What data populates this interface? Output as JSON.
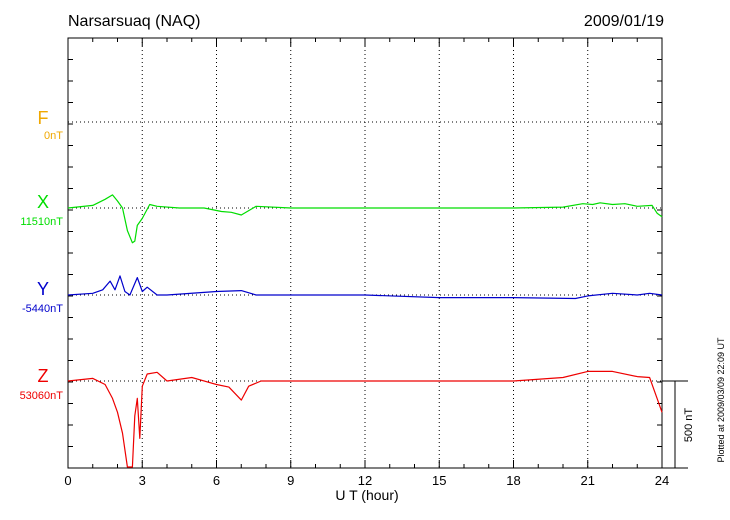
{
  "header": {
    "station": "Narsarsuaq (NAQ)",
    "date": "2009/01/19"
  },
  "footer_note": "Plotted at 2009/03/09 22:09 UT",
  "scale_bar_label": "500 nT",
  "colors": {
    "F": "#f0a800",
    "X": "#00dd00",
    "Y": "#0000cc",
    "Z": "#ee0000",
    "axis": "#000000"
  },
  "chart_data": {
    "type": "line",
    "title": "Narsarsuaq (NAQ)",
    "xlabel": "U T (hour)",
    "ylabel": "",
    "xlim": [
      0,
      24
    ],
    "x_ticks": [
      0,
      3,
      6,
      9,
      12,
      15,
      18,
      21,
      24
    ],
    "x_tick_labels": [
      "0",
      "3",
      "6",
      "9",
      "12",
      "15",
      "18",
      "21",
      "24"
    ],
    "grid": true,
    "scale_nT": 500,
    "series": [
      {
        "name": "F",
        "baseline_label": "0nT",
        "x": [],
        "values": []
      },
      {
        "name": "X",
        "baseline_label": "11510nT",
        "x": [
          0,
          1,
          1.5,
          1.8,
          2.0,
          2.2,
          2.4,
          2.6,
          2.7,
          2.8,
          3.0,
          3.3,
          3.6,
          4.5,
          5.5,
          6.2,
          6.6,
          7.0,
          7.6,
          9,
          12,
          15,
          18,
          20,
          20.8,
          21.2,
          21.5,
          22,
          22.5,
          23,
          23.6,
          23.8,
          24
        ],
        "values": [
          0,
          15,
          50,
          75,
          40,
          0,
          -130,
          -200,
          -190,
          -100,
          -60,
          20,
          10,
          0,
          0,
          -20,
          -25,
          -40,
          10,
          0,
          0,
          0,
          0,
          5,
          25,
          20,
          30,
          20,
          25,
          10,
          15,
          -30,
          -50
        ]
      },
      {
        "name": "Y",
        "baseline_label": "-5440nT",
        "x": [
          0,
          1,
          1.4,
          1.7,
          1.9,
          2.1,
          2.3,
          2.5,
          2.8,
          3.0,
          3.2,
          3.6,
          4,
          6,
          7.0,
          7.6,
          9,
          12,
          15,
          18,
          20.5,
          21,
          22,
          23,
          23.5,
          24
        ],
        "values": [
          0,
          10,
          30,
          80,
          30,
          110,
          20,
          0,
          100,
          20,
          45,
          0,
          0,
          20,
          25,
          0,
          0,
          0,
          -15,
          -15,
          -20,
          -5,
          10,
          0,
          10,
          0
        ]
      },
      {
        "name": "Z",
        "baseline_label": "53060nT",
        "x": [
          0,
          1,
          1.5,
          1.8,
          2.0,
          2.2,
          2.4,
          2.5,
          2.6,
          2.7,
          2.8,
          2.9,
          3.0,
          3.2,
          3.6,
          4,
          5,
          6,
          6.5,
          7.0,
          7.3,
          7.8,
          9,
          12,
          15,
          18,
          20,
          21,
          22,
          23,
          23.5,
          23.8,
          24
        ],
        "values": [
          0,
          15,
          -20,
          -100,
          -180,
          -300,
          -560,
          -620,
          -560,
          -200,
          -100,
          -330,
          -30,
          40,
          50,
          0,
          20,
          -20,
          -35,
          -110,
          -30,
          0,
          0,
          0,
          0,
          0,
          20,
          55,
          55,
          25,
          20,
          -100,
          -180
        ]
      }
    ]
  }
}
